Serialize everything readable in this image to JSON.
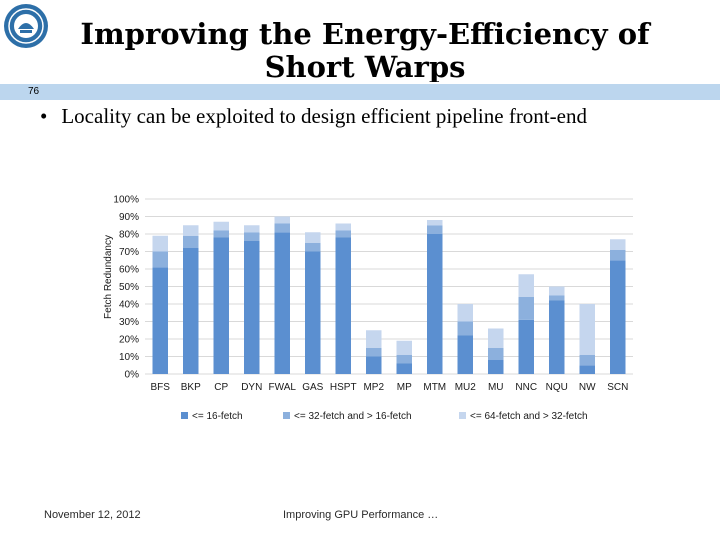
{
  "slide": {
    "title": "Improving the Energy-Efficiency of Short Warps",
    "number": "76",
    "bullet_marker": "•",
    "bullet": "Locality can be exploited to design efficient pipeline front-end",
    "footer_date": "November 12, 2012",
    "footer_title": "Improving GPU Performance …"
  },
  "colors": {
    "series": [
      "#5b8fd0",
      "#8cb0dd",
      "#c5d6ee"
    ],
    "band": "#bcd6ee",
    "grid": "#d9d9d9"
  },
  "chart_data": {
    "type": "bar",
    "stacked": true,
    "ylabel": "Fetch Redundancy",
    "ylim": [
      0,
      100
    ],
    "yticks": [
      "0%",
      "10%",
      "20%",
      "30%",
      "40%",
      "50%",
      "60%",
      "70%",
      "80%",
      "90%",
      "100%"
    ],
    "categories": [
      "BFS",
      "BKP",
      "CP",
      "DYN",
      "FWAL",
      "GAS",
      "HSPT",
      "MP2",
      "MP",
      "MTM",
      "MU2",
      "MU",
      "NNC",
      "NQU",
      "NW",
      "SCN"
    ],
    "series": [
      {
        "name": "<= 16-fetch",
        "values": [
          61,
          72,
          78,
          76,
          81,
          70,
          78,
          10,
          6,
          80,
          22,
          8,
          31,
          42,
          5,
          65
        ]
      },
      {
        "name": "<= 32-fetch and > 16-fetch",
        "values": [
          9,
          7,
          4,
          5,
          5,
          5,
          4,
          5,
          5,
          5,
          8,
          7,
          13,
          3,
          6,
          6
        ]
      },
      {
        "name": "<= 64-fetch and > 32-fetch",
        "values": [
          9,
          6,
          5,
          4,
          4,
          6,
          4,
          10,
          8,
          3,
          10,
          11,
          13,
          5,
          29,
          6
        ]
      }
    ],
    "legend": "bottom"
  }
}
